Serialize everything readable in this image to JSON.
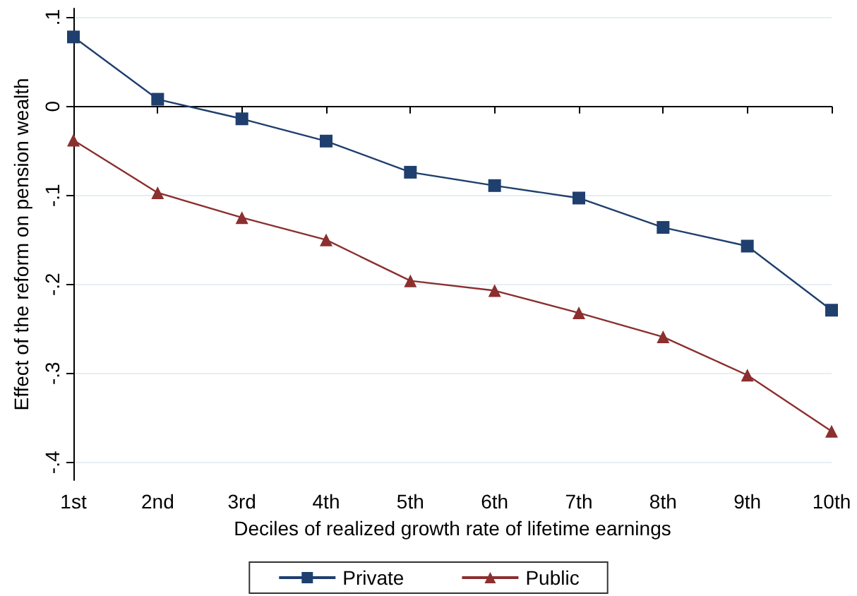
{
  "chart_data": {
    "type": "line",
    "xlabel": "Deciles of realized growth rate of lifetime earnings",
    "ylabel": "Effect of the reform on pension wealth",
    "categories": [
      "1st",
      "2nd",
      "3rd",
      "4th",
      "5th",
      "6th",
      "7th",
      "8th",
      "9th",
      "10th"
    ],
    "series": [
      {
        "name": "Private",
        "color": "#1f3f6e",
        "marker": "square",
        "values": [
          0.078,
          0.008,
          -0.014,
          -0.039,
          -0.074,
          -0.089,
          -0.103,
          -0.136,
          -0.157,
          -0.229
        ]
      },
      {
        "name": "Public",
        "color": "#8b2f2f",
        "marker": "triangle",
        "values": [
          -0.038,
          -0.097,
          -0.125,
          -0.15,
          -0.196,
          -0.207,
          -0.232,
          -0.259,
          -0.302,
          -0.365
        ]
      }
    ],
    "ylim": [
      -0.42,
      0.11
    ],
    "yticks": [
      {
        "value": -0.4,
        "label": "-.4"
      },
      {
        "value": -0.3,
        "label": "-.3"
      },
      {
        "value": -0.2,
        "label": "-.2"
      },
      {
        "value": -0.1,
        "label": "-.1"
      },
      {
        "value": 0,
        "label": "0"
      },
      {
        "value": 0.1,
        "label": ".1"
      }
    ],
    "grid": "y",
    "legend": "bottom",
    "line_style": "solid"
  }
}
